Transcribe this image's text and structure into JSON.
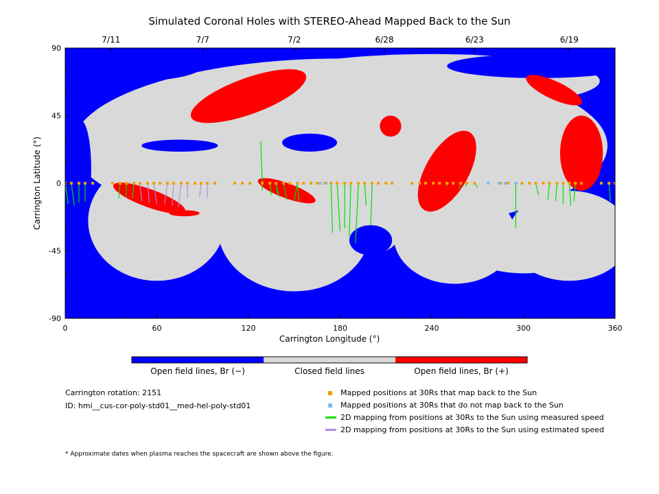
{
  "chart_data": {
    "type": "map",
    "title": "Simulated Coronal Holes with STEREO-Ahead Mapped Back to the Sun",
    "xlabel": "Carrington Longitude (°)",
    "ylabel": "Carrington Latitude (°)",
    "xlim": [
      0,
      360
    ],
    "ylim": [
      -90,
      90
    ],
    "x_ticks": [
      "0",
      "60",
      "120",
      "180",
      "240",
      "300",
      "360"
    ],
    "y_ticks": [
      "-90",
      "-45",
      "0",
      "45",
      "90"
    ],
    "top_axis": {
      "dates": [
        {
          "label": "7/11",
          "lon": 30
        },
        {
          "label": "7/7",
          "lon": 90
        },
        {
          "label": "7/2",
          "lon": 150
        },
        {
          "label": "6/28",
          "lon": 209
        },
        {
          "label": "6/23",
          "lon": 268
        },
        {
          "label": "6/19",
          "lon": 330
        }
      ]
    },
    "colors": {
      "open_negative": "#0000ff",
      "closed": "#d9d9d9",
      "open_positive": "#ff0000",
      "mapped_back": "#f0a000",
      "not_mapped": "#80b8ee",
      "measured_speed": "#00e000",
      "estimated_speed": "#b088e8"
    },
    "regions": {
      "closed_field": [
        {
          "cx": 180,
          "cy": 25,
          "rx": 175,
          "ry": 58
        },
        {
          "cx": 60,
          "cy": -25,
          "rx": 45,
          "ry": 40
        },
        {
          "cx": 150,
          "cy": -30,
          "rx": 50,
          "ry": 42
        },
        {
          "cx": 200,
          "cy": -35,
          "rx": 18,
          "ry": 12
        },
        {
          "cx": 255,
          "cy": -35,
          "rx": 40,
          "ry": 32
        },
        {
          "cx": 330,
          "cy": -35,
          "rx": 40,
          "ry": 30
        },
        {
          "cx": 300,
          "cy": -50,
          "rx": 30,
          "ry": 10
        },
        {
          "cx": 240,
          "cy": 68,
          "rx": 110,
          "ry": 18
        }
      ],
      "open_negative": [
        {
          "cx": 45,
          "cy": 78,
          "rx": 45,
          "ry": 10
        },
        {
          "cx": 310,
          "cy": 78,
          "rx": 60,
          "ry": 8
        },
        {
          "cx": 160,
          "cy": 27,
          "rx": 18,
          "ry": 6
        },
        {
          "cx": 75,
          "cy": 25,
          "rx": 25,
          "ry": 4
        },
        {
          "cx": 10,
          "cy": 10,
          "rx": 7,
          "ry": 32
        },
        {
          "cx": 200,
          "cy": -38,
          "rx": 14,
          "ry": 10
        }
      ],
      "open_positive": [
        {
          "cx": 120,
          "cy": 58,
          "rx": 40,
          "ry": 12,
          "rot": -20
        },
        {
          "cx": 250,
          "cy": 8,
          "rx": 14,
          "ry": 30,
          "rot": 30
        },
        {
          "cx": 338,
          "cy": 20,
          "rx": 14,
          "ry": 25
        },
        {
          "cx": 320,
          "cy": 62,
          "rx": 20,
          "ry": 6,
          "rot": 25
        },
        {
          "cx": 55,
          "cy": -10,
          "rx": 25,
          "ry": 6,
          "rot": 20
        },
        {
          "cx": 145,
          "cy": -5,
          "rx": 20,
          "ry": 5,
          "rot": 20
        },
        {
          "cx": 213,
          "cy": 38,
          "rx": 7,
          "ry": 7
        },
        {
          "cx": 78,
          "cy": -20,
          "rx": 10,
          "ry": 2
        }
      ]
    },
    "mapped_points": {
      "lons": [
        0,
        4,
        9,
        13,
        18,
        31,
        36,
        40,
        45,
        49,
        54,
        58,
        62,
        67,
        71,
        76,
        80,
        85,
        89,
        93,
        98,
        111,
        116,
        121,
        129,
        134,
        138,
        143,
        147,
        152,
        156,
        161,
        165,
        170,
        174,
        178,
        183,
        187,
        192,
        196,
        201,
        205,
        210,
        214,
        227,
        232,
        236,
        241,
        245,
        250,
        254,
        259,
        263,
        268,
        285,
        290,
        295,
        299,
        304,
        308,
        313,
        317,
        322,
        326,
        330,
        334,
        338,
        351,
        356,
        360
      ],
      "lat": 0,
      "not_mapped_lons": [
        167,
        171,
        277,
        284,
        288,
        295
      ],
      "segments": [
        [
          2,
          -14
        ],
        [
          6,
          -15
        ],
        [
          9,
          -13
        ],
        [
          13,
          -12
        ],
        [
          35,
          -10
        ],
        [
          40,
          -9
        ],
        [
          44,
          -10
        ],
        [
          129,
          -5
        ],
        [
          135,
          -8
        ],
        [
          140,
          -9
        ],
        [
          145,
          -11
        ],
        [
          150,
          -11
        ],
        [
          153,
          -12
        ],
        [
          175,
          -33
        ],
        [
          180,
          -32
        ],
        [
          183,
          -30
        ],
        [
          186,
          -35
        ],
        [
          190,
          -40
        ],
        [
          197,
          -15
        ],
        [
          200,
          -28
        ],
        [
          250,
          -2
        ],
        [
          258,
          -4
        ],
        [
          262,
          -2
        ],
        [
          270,
          -3
        ],
        [
          295,
          -30
        ],
        [
          310,
          -8
        ],
        [
          316,
          -11
        ],
        [
          321,
          -12
        ],
        [
          326,
          -14
        ],
        [
          331,
          -15
        ],
        [
          333,
          -12
        ],
        [
          357,
          -12
        ],
        [
          128,
          28
        ],
        [
          139,
          -7
        ]
      ],
      "estimated_segments": [
        [
          50,
          -12
        ],
        [
          55,
          -13
        ],
        [
          60,
          -14
        ],
        [
          65,
          -14
        ],
        [
          70,
          -15
        ],
        [
          74,
          -16
        ],
        [
          80,
          -10
        ],
        [
          88,
          -9
        ],
        [
          93,
          -10
        ]
      ]
    },
    "colorbar": {
      "labels": [
        "Open field lines, Br (−)",
        "Closed field lines",
        "Open field lines, Br (+)"
      ]
    }
  },
  "info": {
    "rotation": "Carrington rotation: 2151",
    "id": "ID: hmi__cus-cor-poly-std01__med-hel-poly-std01"
  },
  "legend": {
    "items": [
      {
        "label": "Mapped positions at 30Rs that map back to the Sun",
        "kind": "square",
        "color": "#f0a000"
      },
      {
        "label": "Mapped positions at 30Rs that do not map back to the Sun",
        "kind": "square",
        "color": "#80b8ee"
      },
      {
        "label": "2D mapping from positions at 30Rs to the Sun using measured speed",
        "kind": "line",
        "color": "#00e000"
      },
      {
        "label": "2D mapping from positions at 30Rs to the Sun using estimated speed",
        "kind": "line",
        "color": "#b088e8"
      }
    ]
  },
  "footnote": "* Approximate dates when plasma reaches the spacecraft are shown above the figure."
}
